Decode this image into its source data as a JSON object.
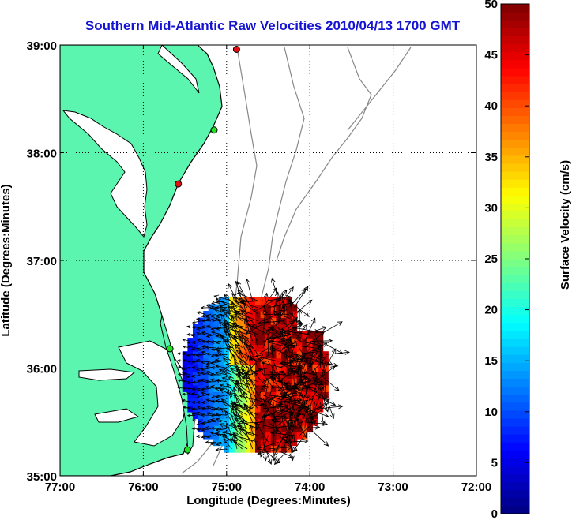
{
  "chart_data": {
    "type": "scatter",
    "title": "Southern Mid-Atlantic Raw Velocities 2010/04/13 1700 GMT",
    "xlabel": "Longitude (Degrees:Minutes)",
    "ylabel": "Latitude (Degrees:Minutes)",
    "colorbar_label": "Surface Velocity (cm/s)",
    "xlim": [
      -77,
      -72
    ],
    "ylim": [
      35,
      39
    ],
    "clim": [
      0,
      50
    ],
    "x_ticks": [
      {
        "value": -77,
        "label": "77:00"
      },
      {
        "value": -76,
        "label": "76:00"
      },
      {
        "value": -75,
        "label": "75:00"
      },
      {
        "value": -74,
        "label": "74:00"
      },
      {
        "value": -73,
        "label": "73:00"
      },
      {
        "value": -72,
        "label": "72:00"
      }
    ],
    "y_ticks": [
      {
        "value": 35,
        "label": "35:00"
      },
      {
        "value": 36,
        "label": "36:00"
      },
      {
        "value": 37,
        "label": "37:00"
      },
      {
        "value": 38,
        "label": "38:00"
      },
      {
        "value": 39,
        "label": "39:00"
      }
    ],
    "colorbar_ticks": [
      {
        "value": 0,
        "label": "0"
      },
      {
        "value": 5,
        "label": "5"
      },
      {
        "value": 10,
        "label": "10"
      },
      {
        "value": 15,
        "label": "15"
      },
      {
        "value": 20,
        "label": "20"
      },
      {
        "value": 25,
        "label": "25"
      },
      {
        "value": 30,
        "label": "30"
      },
      {
        "value": 35,
        "label": "35"
      },
      {
        "value": 40,
        "label": "40"
      },
      {
        "value": 45,
        "label": "45"
      },
      {
        "value": 50,
        "label": "50"
      }
    ],
    "grid": true,
    "grid_style": "dotted",
    "colormap": "jet",
    "land_color": "#5cf5b0",
    "isobath_color": "#888888",
    "arrow_color": "#000000",
    "stations": [
      {
        "lon": -74.88,
        "lat": 38.96,
        "status": "red"
      },
      {
        "lon": -75.15,
        "lat": 38.21,
        "status": "green"
      },
      {
        "lon": -75.58,
        "lat": 37.71,
        "status": "red"
      },
      {
        "lon": -75.68,
        "lat": 36.18,
        "status": "green"
      },
      {
        "lon": -75.47,
        "lat": 35.24,
        "status": "green"
      }
    ],
    "velocity_field": {
      "lon_range": [
        -75.5,
        -73.8
      ],
      "lat_range": [
        35.25,
        36.65
      ],
      "grid_step_deg": 0.0625,
      "speed_range_cm_s": [
        3,
        50
      ],
      "region_pattern": [
        {
          "zone": "west",
          "speed_cm_s": 8,
          "direction": "westward"
        },
        {
          "zone": "north-central",
          "speed_cm_s": 25,
          "direction": "northwest"
        },
        {
          "zone": "east",
          "speed_cm_s": 50,
          "direction": "variable"
        }
      ]
    }
  }
}
